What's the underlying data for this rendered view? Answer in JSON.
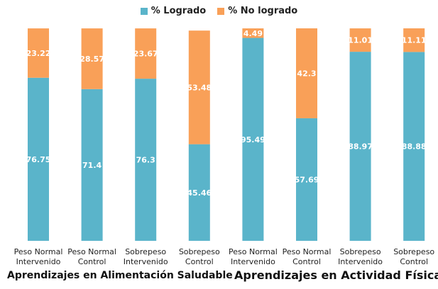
{
  "chart_data": {
    "type": "bar",
    "stacked": true,
    "categories": [
      [
        "Peso Normal",
        "Intervenido"
      ],
      [
        "Peso Normal",
        "Control"
      ],
      [
        "Sobrepeso",
        "Intervenido"
      ],
      [
        "Sobrepeso",
        "Control"
      ],
      [
        "Peso Normal",
        "Intervenido"
      ],
      [
        "Peso Normal",
        "Control"
      ],
      [
        "Sobrepeso",
        "Intervenido"
      ],
      [
        "Sobrepeso",
        "Control"
      ]
    ],
    "series": [
      {
        "name": "% Logrado",
        "color": "#5ab4ca",
        "values": [
          76.75,
          71.4,
          76.3,
          45.46,
          95.49,
          57.69,
          88.97,
          88.88
        ]
      },
      {
        "name": "% No logrado",
        "color": "#f9a058",
        "values": [
          23.22,
          28.57,
          23.67,
          53.48,
          4.49,
          42.3,
          11.01,
          11.11
        ]
      }
    ],
    "groups": [
      {
        "label": "Aprendizajes en Alimentación Saludable",
        "categories": [
          0,
          1,
          2,
          3
        ]
      },
      {
        "label": "Aprendizajes en Actividad Física",
        "categories": [
          4,
          5,
          6,
          7
        ]
      }
    ],
    "ylim": [
      0,
      100
    ],
    "grid": false,
    "legend": "top-center",
    "data_labels": true
  }
}
